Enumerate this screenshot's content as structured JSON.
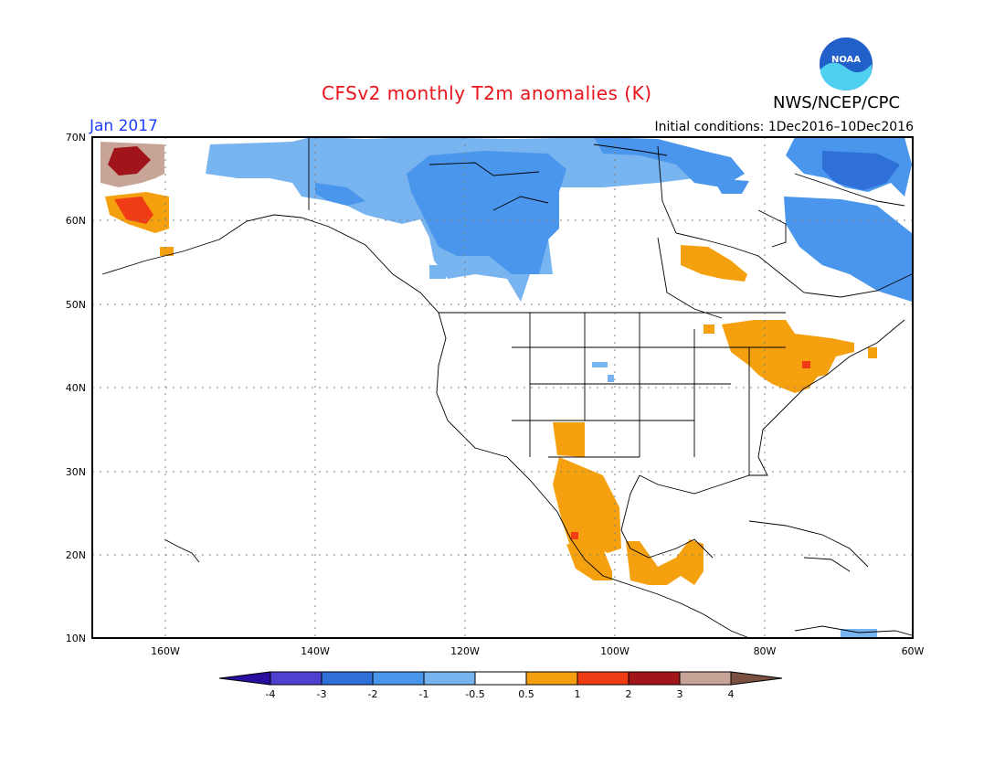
{
  "header": {
    "title": "CFSv2 monthly T2m anomalies (K)",
    "agency": "NWS/NCEP/CPC",
    "month": "Jan 2017",
    "initial_conditions": "Initial conditions: 1Dec2016–10Dec2016",
    "logo_text": "NOAA"
  },
  "map": {
    "lat_labels": [
      "70N",
      "60N",
      "50N",
      "40N",
      "30N",
      "20N",
      "10N"
    ],
    "lon_labels": [
      "160W",
      "140W",
      "120W",
      "100W",
      "80W",
      "60W"
    ],
    "colors": {
      "cold_1": "#78b4f0",
      "cold_2": "#4a96ec",
      "cold_3": "#2e6fd8",
      "cold_4": "#1a3fb0",
      "warm_1": "#f5a00f",
      "warm_2": "#f03c14",
      "warm_3": "#a0141a",
      "warm_4": "#c8a496"
    }
  },
  "colorbar": {
    "labels": [
      "-4",
      "-3",
      "-2",
      "-1",
      "-0.5",
      "0.5",
      "1",
      "2",
      "3",
      "4"
    ],
    "colors": [
      "#2a0ea0",
      "#5040d0",
      "#2e6fd8",
      "#4a96ec",
      "#78b4f0",
      "#ffffff",
      "#f5a00f",
      "#f03c14",
      "#a0141a",
      "#c8a496",
      "#7a5040"
    ]
  }
}
